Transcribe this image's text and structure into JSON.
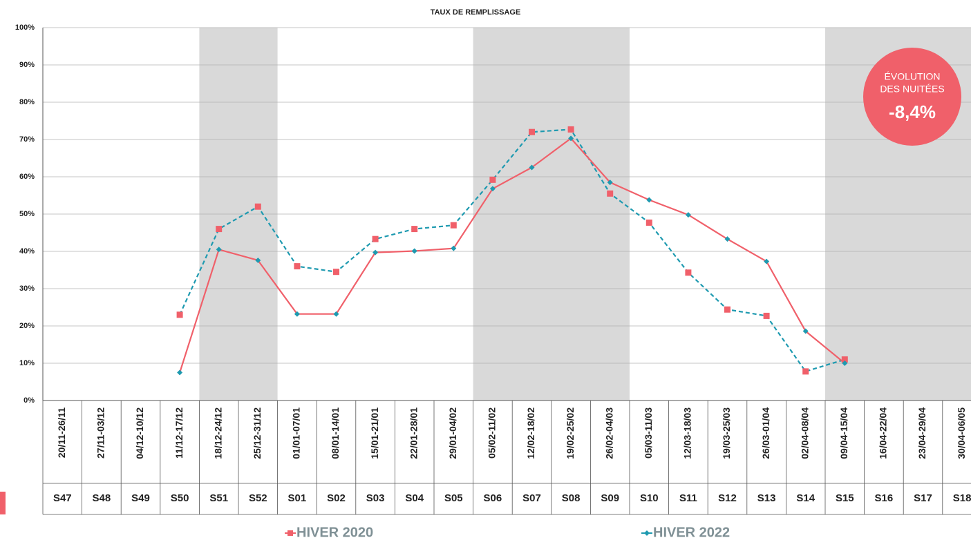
{
  "chart_data": {
    "type": "line",
    "title": "TAUX DE REMPLISSAGE",
    "categories": [
      "S47",
      "S48",
      "S49",
      "S50",
      "S51",
      "S52",
      "S01",
      "S02",
      "S03",
      "S04",
      "S05",
      "S06",
      "S07",
      "S08",
      "S09",
      "S10",
      "S11",
      "S12",
      "S13",
      "S14",
      "S15",
      "S16",
      "S17",
      "S18"
    ],
    "dates": [
      "20/11-26/11",
      "27/11-03/12",
      "04/12-10/12",
      "11/12-17/12",
      "18/12-24/12",
      "25/12-31/12",
      "01/01-07/01",
      "08/01-14/01",
      "15/01-21/01",
      "22/01-28/01",
      "29/01-04/02",
      "05/02-11/02",
      "12/02-18/02",
      "19/02-25/02",
      "26/02-04/03",
      "05/03-11/03",
      "12/03-18/03",
      "19/03-25/03",
      "26/03-01/04",
      "02/04-08/04",
      "09/04-15/04",
      "16/04-22/04",
      "23/04-29/04",
      "30/04-06/05"
    ],
    "series": [
      {
        "name": "HIVER 2020",
        "color": "#f0606a",
        "marker": "square",
        "line_color": "#1e9ab0",
        "dashed": true,
        "values": [
          null,
          null,
          null,
          23,
          46,
          52,
          36,
          34.5,
          43.3,
          46,
          47,
          59.2,
          72,
          72.7,
          55.5,
          47.7,
          34.3,
          24.4,
          22.7,
          7.8,
          11,
          null,
          null,
          null
        ]
      },
      {
        "name": "HIVER 2022",
        "color": "#1e9ab0",
        "marker": "diamond",
        "line_color": "#f0606a",
        "dashed": false,
        "values": [
          null,
          null,
          null,
          7.5,
          40.5,
          37.6,
          23.2,
          23.2,
          39.7,
          40.1,
          40.8,
          56.8,
          62.5,
          70.3,
          58.5,
          53.8,
          49.8,
          43.3,
          37.3,
          18.6,
          10,
          null,
          null,
          null
        ]
      }
    ],
    "shaded": [
      [
        4,
        5
      ],
      [
        11,
        14
      ],
      [
        20,
        23
      ]
    ],
    "ylim": [
      0,
      100
    ],
    "yticks": [
      {
        "value": 0,
        "label": "0%"
      },
      {
        "value": 10,
        "label": "10%"
      },
      {
        "value": 20,
        "label": "20%"
      },
      {
        "value": 30,
        "label": "30%"
      },
      {
        "value": 40,
        "label": "40%"
      },
      {
        "value": 50,
        "label": "50%"
      },
      {
        "value": 60,
        "label": "60%"
      },
      {
        "value": 70,
        "label": "70%"
      },
      {
        "value": 80,
        "label": "80%"
      },
      {
        "value": 90,
        "label": "90%"
      },
      {
        "value": 100,
        "label": "100%"
      }
    ],
    "grid": true,
    "annotation": {
      "line1": "ÉVOLUTION",
      "line2": "DES NUITÉES",
      "value": "-8,4%"
    }
  }
}
